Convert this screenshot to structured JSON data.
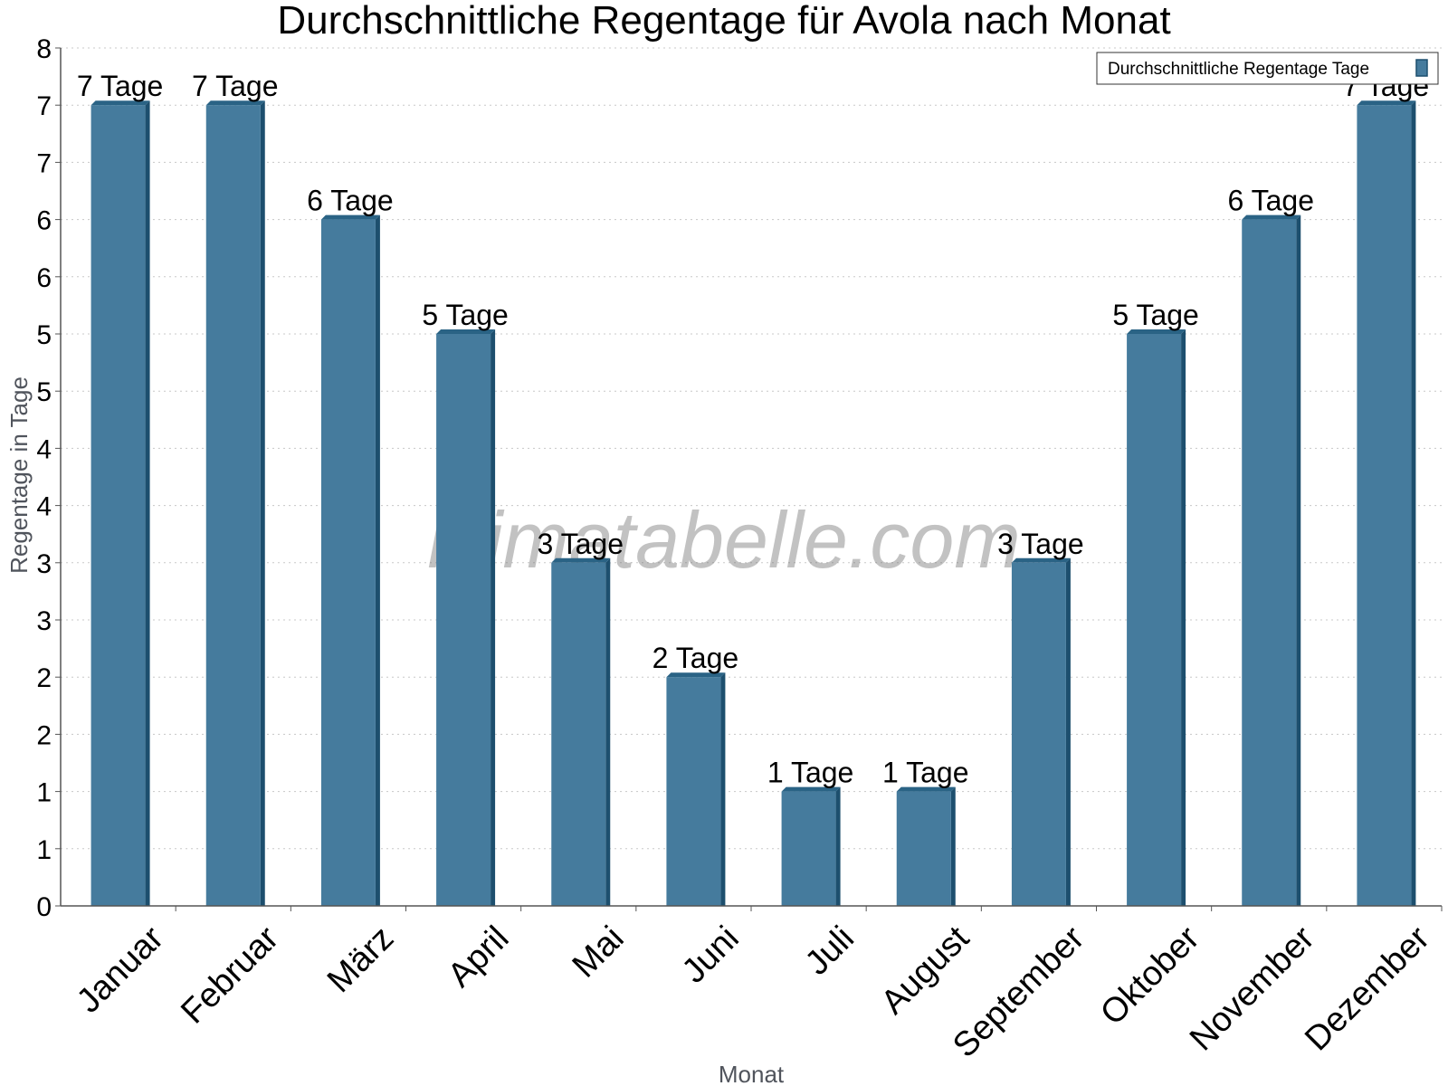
{
  "chart_data": {
    "type": "bar",
    "title": "Durchschnittliche Regentage für Avola nach Monat",
    "xlabel": "Monat",
    "ylabel": "Regentage in Tage",
    "categories": [
      "Januar",
      "Februar",
      "März",
      "April",
      "Mai",
      "Juni",
      "Juli",
      "August",
      "September",
      "Oktober",
      "November",
      "Dezember"
    ],
    "series": [
      {
        "name": "Durchschnittliche Regentage Tage",
        "values": [
          7,
          7,
          6,
          5,
          3,
          2,
          1,
          1,
          3,
          5,
          6,
          7
        ],
        "labels": [
          "7 Tage",
          "7 Tage",
          "6 Tage",
          "5 Tage",
          "3 Tage",
          "2 Tage",
          "1 Tage",
          "1 Tage",
          "3 Tage",
          "5 Tage",
          "6 Tage",
          "7 Tage"
        ]
      }
    ],
    "ylim": [
      0,
      7.5
    ],
    "yticks": [
      0,
      0.5,
      1,
      1.5,
      2,
      2.5,
      3,
      3.5,
      4,
      4.5,
      5,
      5.5,
      6,
      6.5,
      7,
      7.5
    ],
    "ytick_labels": [
      "0",
      "1",
      "1",
      "2",
      "2",
      "3",
      "3",
      "4",
      "4",
      "5",
      "5",
      "6",
      "6",
      "7",
      "7",
      "8"
    ],
    "grid": true,
    "legend_position": "top-right",
    "colors": {
      "bar": "#457b9d",
      "bar_side": "#1d4f6e",
      "bar_top": "#2a6385",
      "grid": "#c8c8c8",
      "axis": "#555555"
    }
  },
  "watermark": "klimatabelle.com"
}
